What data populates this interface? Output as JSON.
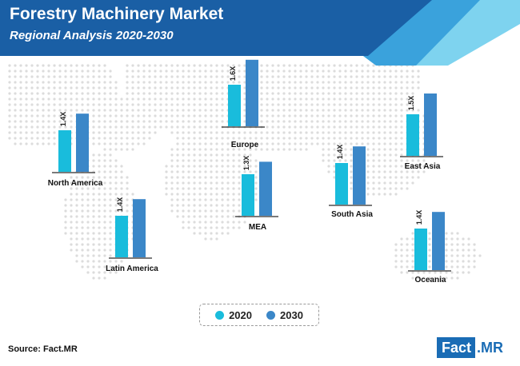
{
  "header": {
    "title": "Forestry Machinery Market",
    "subtitle": "Regional Analysis 2020-2030"
  },
  "colors": {
    "series_2020": "#19bcdc",
    "series_2030": "#3b87c8",
    "header_dark": "#1a5fa5",
    "header_light": "#7ed3ef",
    "map_dots": "#dcdcdc",
    "brand": "#1a6cb5"
  },
  "legend": {
    "items": [
      {
        "label": "2020",
        "color": "#19bcdc"
      },
      {
        "label": "2030",
        "color": "#3b87c8"
      }
    ]
  },
  "chart_data": {
    "type": "bar",
    "title": "Forestry Machinery Market",
    "subtitle": "Regional Analysis 2020-2030",
    "categories": [
      "North America",
      "Europe",
      "Latin America",
      "MEA",
      "South Asia",
      "East Asia",
      "Oceania"
    ],
    "series": [
      {
        "name": "2020",
        "values": [
          1.0,
          1.0,
          1.0,
          1.0,
          1.0,
          1.0,
          1.0
        ]
      },
      {
        "name": "2030",
        "values": [
          1.4,
          1.6,
          1.4,
          1.3,
          1.4,
          1.5,
          1.4
        ]
      }
    ],
    "growth_labels": [
      "1.4X",
      "1.6X",
      "1.4X",
      "1.3X",
      "1.4X",
      "1.5X",
      "1.4X"
    ],
    "value_unit": "relative to 2020"
  },
  "footer": {
    "source": "Source: Fact.MR",
    "logo_left": "Fact",
    "logo_right": ".MR"
  }
}
